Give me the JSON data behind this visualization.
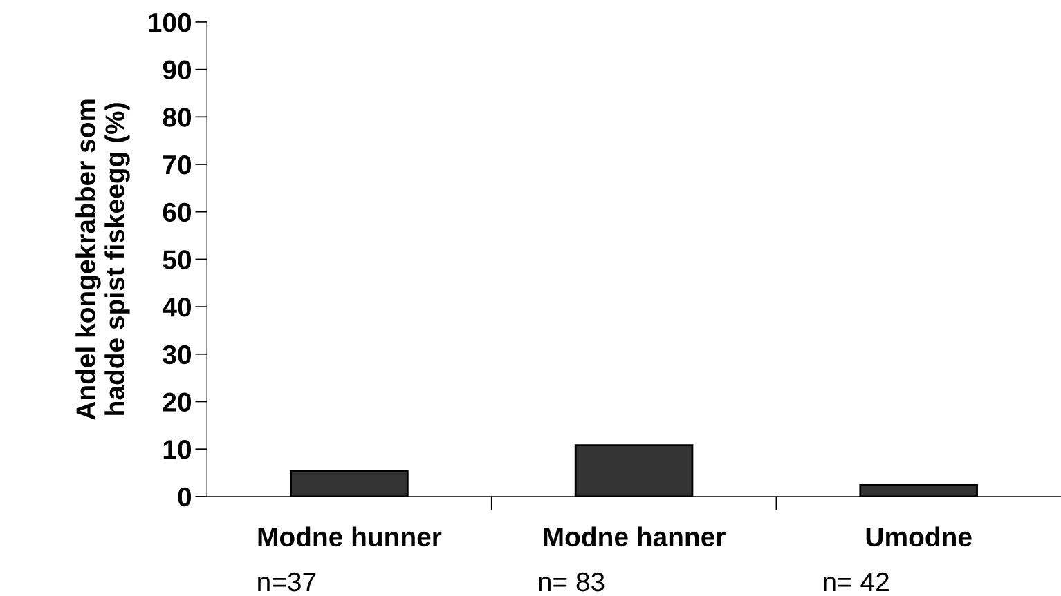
{
  "chart_data": {
    "type": "bar",
    "categories": [
      "Modne hunner",
      "Modne hanner",
      "Umodne"
    ],
    "values": [
      5.4,
      10.8,
      2.4
    ],
    "color": "#333333",
    "ylabel": "Andel kongekrabber som\nhadde spist fiskeegg (%)",
    "ylim": [
      0,
      100
    ],
    "yticks": [
      0,
      10,
      20,
      30,
      40,
      50,
      60,
      70,
      80,
      90,
      100
    ],
    "grid": false,
    "legend": false,
    "annotations": [
      "n=37",
      "n= 83",
      "n= 42"
    ]
  }
}
